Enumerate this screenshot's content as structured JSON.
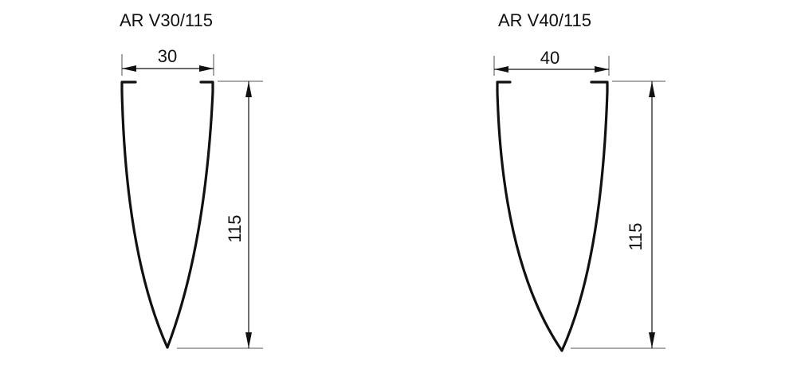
{
  "profiles": [
    {
      "title": "AR V30/115",
      "width_label": "30",
      "height_label": "115"
    },
    {
      "title": "AR V40/115",
      "width_label": "40",
      "height_label": "115"
    }
  ]
}
